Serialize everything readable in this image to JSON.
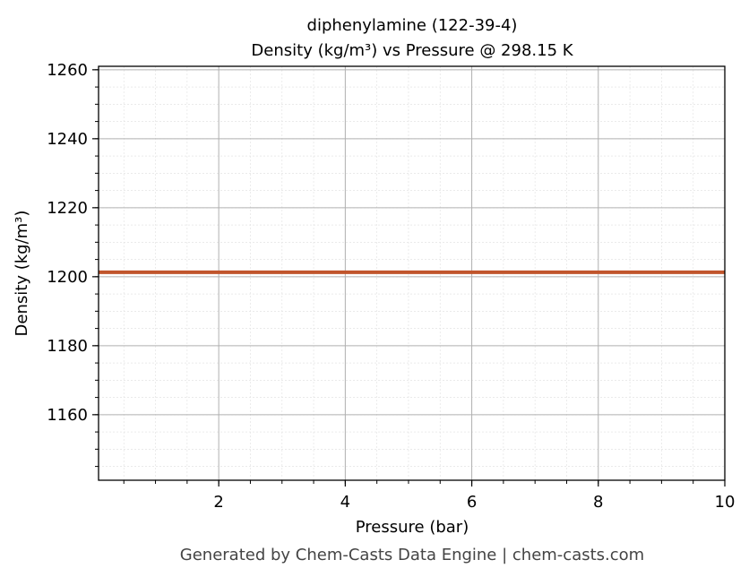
{
  "chart_data": {
    "type": "line",
    "title": "diphenylamine (122-39-4)",
    "subtitle": "Density (kg/m³) vs Pressure @ 298.15 K",
    "x_label": "Pressure (bar)",
    "y_label": "Density (kg/m³)",
    "footer": "Generated by Chem-Casts Data Engine | chem-casts.com",
    "x": [
      0.1,
      10
    ],
    "series": [
      {
        "name": "Density",
        "color": "#c1552c",
        "values": [
          1201.3,
          1201.3
        ]
      }
    ],
    "xlim": [
      0.1,
      10
    ],
    "xticks": [
      2,
      4,
      6,
      8,
      10
    ],
    "ylim": [
      1141,
      1261
    ],
    "yticks": [
      1160,
      1180,
      1200,
      1220,
      1240,
      1260
    ],
    "grid": true
  }
}
